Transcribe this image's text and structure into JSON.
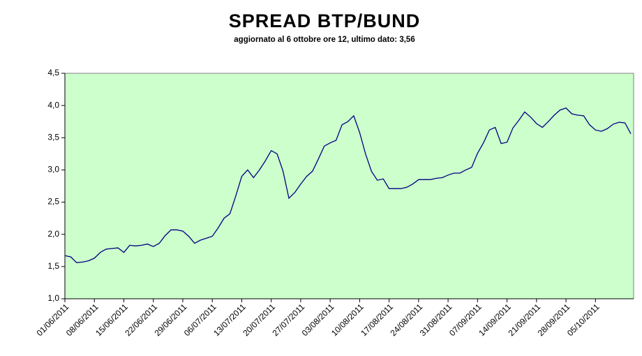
{
  "chart_data": {
    "type": "line",
    "title": "SPREAD BTP/BUND",
    "subtitle": "aggiornato al 6 ottobre ore 12, ultimo dato: 3,56",
    "categories": [
      "01/06/2011",
      null,
      null,
      null,
      null,
      "08/06/2011",
      null,
      null,
      null,
      null,
      "15/06/2011",
      null,
      null,
      null,
      null,
      "22/06/2011",
      null,
      null,
      null,
      null,
      "29/06/2011",
      null,
      null,
      null,
      null,
      "06/07/2011",
      null,
      null,
      null,
      null,
      "13/07/2011",
      null,
      null,
      null,
      null,
      "20/07/2011",
      null,
      null,
      null,
      null,
      "27/07/2011",
      null,
      null,
      null,
      null,
      "03/08/2011",
      null,
      null,
      null,
      null,
      "10/08/2011",
      null,
      null,
      null,
      null,
      "17/08/2011",
      null,
      null,
      null,
      null,
      "24/08/2011",
      null,
      null,
      null,
      null,
      "31/08/2011",
      null,
      null,
      null,
      null,
      "07/09/2011",
      null,
      null,
      null,
      null,
      "14/09/2011",
      null,
      null,
      null,
      null,
      "21/09/2011",
      null,
      null,
      null,
      null,
      "28/09/2011",
      null,
      null,
      null,
      null,
      "05/10/2011",
      null,
      null,
      null,
      null,
      null,
      null
    ],
    "series": [
      {
        "name": "Spread BTP/Bund",
        "color": "#000080",
        "values": [
          1.67,
          1.65,
          1.56,
          1.57,
          1.59,
          1.63,
          1.72,
          1.77,
          1.78,
          1.79,
          1.72,
          1.83,
          1.82,
          1.83,
          1.85,
          1.81,
          1.86,
          1.98,
          2.07,
          2.07,
          2.05,
          1.97,
          1.86,
          1.91,
          1.94,
          1.97,
          2.1,
          2.25,
          2.32,
          2.6,
          2.9,
          3.0,
          2.88,
          3.0,
          3.14,
          3.3,
          3.25,
          2.98,
          2.56,
          2.65,
          2.78,
          2.9,
          2.98,
          3.17,
          3.37,
          3.42,
          3.46,
          3.7,
          3.75,
          3.84,
          3.58,
          3.25,
          2.98,
          2.84,
          2.86,
          2.71,
          2.71,
          2.71,
          2.73,
          2.78,
          2.85,
          2.85,
          2.85,
          2.87,
          2.88,
          2.92,
          2.95,
          2.95,
          3.0,
          3.04,
          3.26,
          3.42,
          3.62,
          3.66,
          3.41,
          3.43,
          3.65,
          3.77,
          3.9,
          3.82,
          3.72,
          3.66,
          3.75,
          3.85,
          3.93,
          3.96,
          3.87,
          3.85,
          3.84,
          3.7,
          3.62,
          3.6,
          3.64,
          3.71,
          3.74,
          3.73,
          3.56
        ]
      }
    ],
    "ylim": [
      1.0,
      4.5
    ],
    "yticks": [
      {
        "value": 1.0,
        "label": "1,0"
      },
      {
        "value": 1.5,
        "label": "1,5"
      },
      {
        "value": 2.0,
        "label": "2,0"
      },
      {
        "value": 2.5,
        "label": "2,5"
      },
      {
        "value": 3.0,
        "label": "3,0"
      },
      {
        "value": 3.5,
        "label": "3,5"
      },
      {
        "value": 4.0,
        "label": "4,0"
      },
      {
        "value": 4.5,
        "label": "4,5"
      }
    ],
    "plot_background": "#ccffcc",
    "grid": false
  }
}
